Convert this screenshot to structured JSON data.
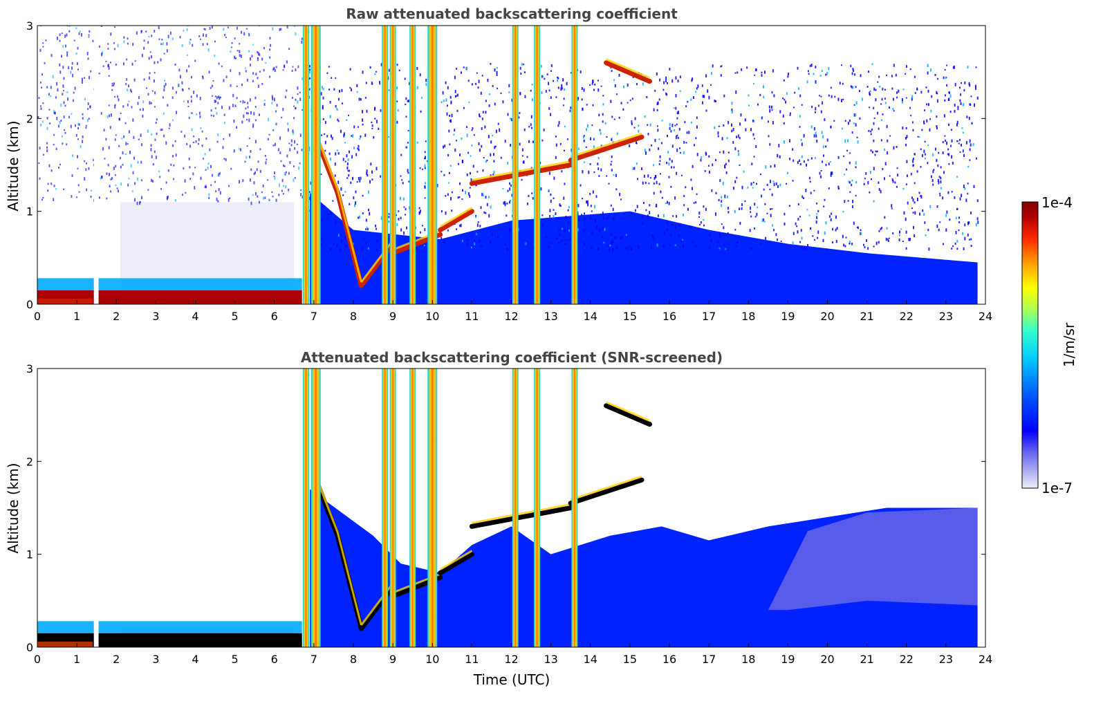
{
  "chart_data": [
    {
      "type": "heatmap",
      "title": "Raw attenuated backscattering coefficient",
      "xlabel": "",
      "ylabel": "Altitude (km)",
      "xlim": [
        0,
        24
      ],
      "ylim": [
        0,
        3
      ],
      "x_ticks": [
        "0",
        "1",
        "2",
        "3",
        "4",
        "5",
        "6",
        "7",
        "8",
        "9",
        "10",
        "11",
        "12",
        "13",
        "14",
        "15",
        "16",
        "17",
        "18",
        "19",
        "20",
        "21",
        "22",
        "23",
        "24"
      ],
      "y_ticks": [
        "0",
        "1",
        "2",
        "3"
      ],
      "screened": false,
      "features": {
        "surface_layer": {
          "x": [
            0,
            6.7
          ],
          "top_km": 0.15,
          "value": "1e-4"
        },
        "data_gap": {
          "x": [
            1.43,
            1.55
          ]
        },
        "cloud_layers": [
          {
            "x": [
              7.1,
              7.6
            ],
            "alt_km": [
              1.75,
              1.2
            ]
          },
          {
            "x": [
              7.6,
              8.2
            ],
            "alt_km": [
              1.2,
              0.2
            ]
          },
          {
            "x": [
              8.2,
              9.0
            ],
            "alt_km": [
              0.2,
              0.65
            ]
          },
          {
            "x": [
              9.0,
              10.2
            ],
            "alt_km": [
              0.55,
              0.75
            ]
          },
          {
            "x": [
              10.2,
              11.0
            ],
            "alt_km": [
              0.8,
              1.0
            ]
          },
          {
            "x": [
              11.0,
              13.5
            ],
            "alt_km": [
              1.3,
              1.5
            ]
          },
          {
            "x": [
              13.5,
              15.3
            ],
            "alt_km": [
              1.55,
              1.8
            ]
          },
          {
            "x": [
              14.4,
              15.5
            ],
            "alt_km": [
              2.6,
              2.4
            ]
          }
        ],
        "rain_columns_utc": [
          6.8,
          7.05,
          8.8,
          9.0,
          9.5,
          10.0,
          12.1,
          12.65,
          13.6
        ]
      }
    },
    {
      "type": "heatmap",
      "title": "Attenuated backscattering coefficient (SNR-screened)",
      "xlabel": "Time (UTC)",
      "ylabel": "Altitude (km)",
      "xlim": [
        0,
        24
      ],
      "ylim": [
        0,
        3
      ],
      "x_ticks": [
        "0",
        "1",
        "2",
        "3",
        "4",
        "5",
        "6",
        "7",
        "8",
        "9",
        "10",
        "11",
        "12",
        "13",
        "14",
        "15",
        "16",
        "17",
        "18",
        "19",
        "20",
        "21",
        "22",
        "23",
        "24"
      ],
      "y_ticks": [
        "0",
        "1",
        "2",
        "3"
      ],
      "screened": true
    }
  ],
  "colorbar": {
    "label": "1/m/sr",
    "max_label": "1e-4",
    "min_label": "1e-7",
    "scale": "log",
    "colormap": [
      "#ffffff",
      "#d6d6f5",
      "#8080ee",
      "#0000ff",
      "#0066ff",
      "#00ccff",
      "#33ffcc",
      "#b3ff4d",
      "#ffff00",
      "#ffa500",
      "#ff3300",
      "#aa0000",
      "#800000"
    ]
  },
  "colors": {
    "surface_layer": "#aa0000",
    "aerosol": "#0022ff",
    "cloud": "#cc2200",
    "screened_cloud": "#000000",
    "noise": "#0000ff",
    "faint_noise": "#ccccf2"
  }
}
